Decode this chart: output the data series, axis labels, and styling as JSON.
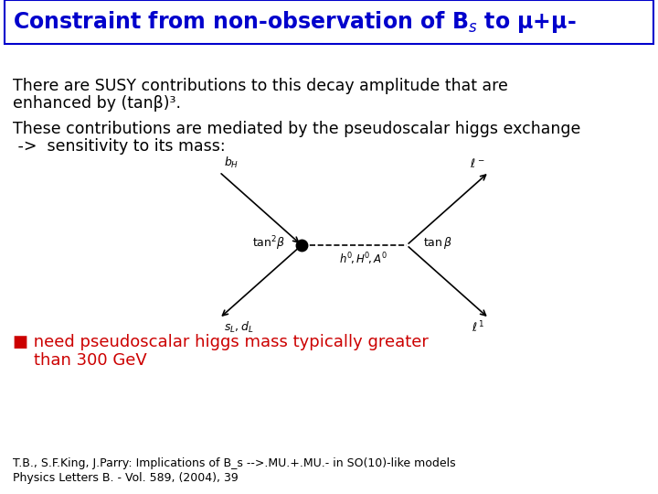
{
  "title": "Constraint from non-observation of B$_s$ to μ+μ-",
  "title_color": "#0000CC",
  "title_fontsize": 17,
  "background_color": "#FFFFFF",
  "border_color": "#0000CC",
  "text1_line1": "There are SUSY contributions to this decay amplitude that are",
  "text1_line2": "enhanced by (tanβ)³.",
  "text2_line1": "These contributions are mediated by the pseudoscalar higgs exchange",
  "text2_line2": " ->  sensitivity to its mass:",
  "bullet_text1": "■ need pseudoscalar higgs mass typically greater",
  "bullet_text2": "    than 300 GeV",
  "bullet_color": "#CC0000",
  "ref_text1": "T.B., S.F.King, J.Parry: Implications of B_s -->.MU.+.MU.- in SO(10)-like models",
  "ref_text2": "Physics Letters B. - Vol. 589, (2004), 39",
  "body_text_color": "#000000",
  "body_fontsize": 12.5,
  "ref_fontsize": 9,
  "bullet_fontsize": 13
}
